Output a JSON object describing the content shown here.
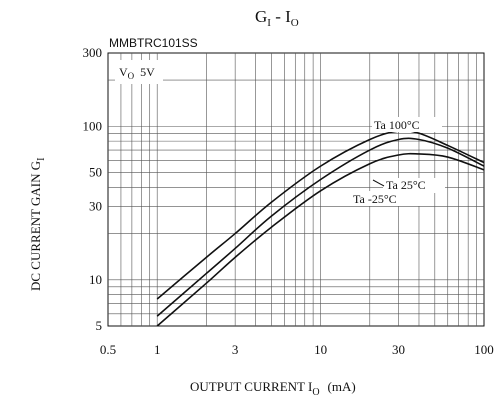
{
  "chart_data": {
    "type": "line",
    "title": {
      "main": "G",
      "main_sub": "I",
      "sep": " - I",
      "sep_sub": "O"
    },
    "part_number": "MMBTRC101SS",
    "condition": {
      "prefix": "V",
      "sub": "O",
      "value": "5V"
    },
    "xlabel": {
      "text": "OUTPUT CURRENT I",
      "sub": "O",
      "unit": "(mA)"
    },
    "ylabel": {
      "text": "DC CURRENT GAIN G",
      "sub": "I"
    },
    "x_scale": "log",
    "y_scale": "log",
    "xlim": [
      0.5,
      100
    ],
    "ylim": [
      5,
      300
    ],
    "x_ticks": [
      0.5,
      1,
      3,
      10,
      30,
      100
    ],
    "x_tick_labels": [
      "0.5",
      "1",
      "3",
      "10",
      "30",
      "100"
    ],
    "y_ticks": [
      5,
      10,
      30,
      50,
      100,
      300
    ],
    "y_tick_labels": [
      "5",
      "10",
      "30",
      "50",
      "100",
      "300"
    ],
    "grid": true,
    "series": [
      {
        "name": "Ta 100°C",
        "x": [
          1,
          2,
          3,
          5,
          10,
          20,
          30,
          40,
          60,
          100
        ],
        "y": [
          7.5,
          14,
          20,
          32,
          55,
          82,
          93,
          90,
          75,
          58
        ]
      },
      {
        "name": "Ta 25°C",
        "x": [
          1,
          2,
          3,
          5,
          10,
          20,
          30,
          40,
          60,
          100
        ],
        "y": [
          5.8,
          11,
          16,
          26,
          45,
          70,
          82,
          82,
          72,
          55
        ]
      },
      {
        "name": "Ta -25°C",
        "x": [
          1,
          2,
          3,
          5,
          10,
          20,
          30,
          40,
          60,
          100
        ],
        "y": [
          5.0,
          9.5,
          14,
          22,
          38,
          57,
          65,
          66,
          63,
          52
        ]
      }
    ],
    "annotations": [
      "Ta  100°C",
      "Ta  25°C",
      "Ta  -25°C"
    ]
  }
}
